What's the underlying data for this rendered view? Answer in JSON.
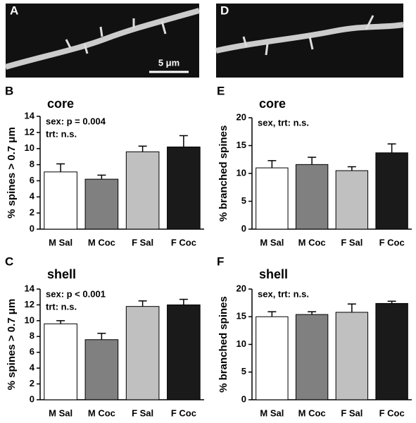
{
  "images": [
    {
      "label": "A",
      "scale_bar": "5 μm"
    },
    {
      "label": "D"
    }
  ],
  "chart_data": [
    {
      "type": "bar",
      "label": "B",
      "title": "core",
      "annotations": [
        "sex: p = 0.004",
        "trt: n.s."
      ],
      "ylabel": "% spines > 0.7 μm",
      "categories": [
        "M Sal",
        "M Coc",
        "F Sal",
        "F Coc"
      ],
      "values": [
        7.1,
        6.2,
        9.6,
        10.2
      ],
      "errors": [
        1.0,
        0.5,
        0.7,
        1.4
      ],
      "colors": [
        "#ffffff",
        "#808080",
        "#c0c0c0",
        "#1a1a1a"
      ],
      "ylim": [
        0,
        14
      ],
      "yticks": [
        0,
        2,
        4,
        6,
        8,
        10,
        12,
        14
      ]
    },
    {
      "type": "bar",
      "label": "E",
      "title": "core",
      "annotations": [
        "sex, trt: n.s."
      ],
      "ylabel": "% branched spines",
      "categories": [
        "M Sal",
        "M Coc",
        "F Sal",
        "F Coc"
      ],
      "values": [
        11.0,
        11.6,
        10.5,
        13.7
      ],
      "errors": [
        1.3,
        1.3,
        0.7,
        1.6
      ],
      "colors": [
        "#ffffff",
        "#808080",
        "#c0c0c0",
        "#1a1a1a"
      ],
      "ylim": [
        0,
        20
      ],
      "yticks": [
        0,
        5,
        10,
        15,
        20
      ]
    },
    {
      "type": "bar",
      "label": "C",
      "title": "shell",
      "annotations": [
        "sex: p < 0.001",
        "trt: n.s."
      ],
      "ylabel": "% spines > 0.7 μm",
      "categories": [
        "M Sal",
        "M Coc",
        "F Sal",
        "F Coc"
      ],
      "values": [
        9.6,
        7.6,
        11.8,
        12.0
      ],
      "errors": [
        0.4,
        0.8,
        0.7,
        0.7
      ],
      "colors": [
        "#ffffff",
        "#808080",
        "#c0c0c0",
        "#1a1a1a"
      ],
      "ylim": [
        0,
        14
      ],
      "yticks": [
        0,
        2,
        4,
        6,
        8,
        10,
        12,
        14
      ]
    },
    {
      "type": "bar",
      "label": "F",
      "title": "shell",
      "annotations": [
        "sex, trt: n.s."
      ],
      "ylabel": "% branched spines",
      "categories": [
        "M Sal",
        "M Coc",
        "F Sal",
        "F Coc"
      ],
      "values": [
        15.0,
        15.4,
        15.8,
        17.4
      ],
      "errors": [
        0.9,
        0.5,
        1.5,
        0.4
      ],
      "colors": [
        "#ffffff",
        "#808080",
        "#c0c0c0",
        "#1a1a1a"
      ],
      "ylim": [
        0,
        20
      ],
      "yticks": [
        0,
        5,
        10,
        15,
        20
      ]
    }
  ]
}
